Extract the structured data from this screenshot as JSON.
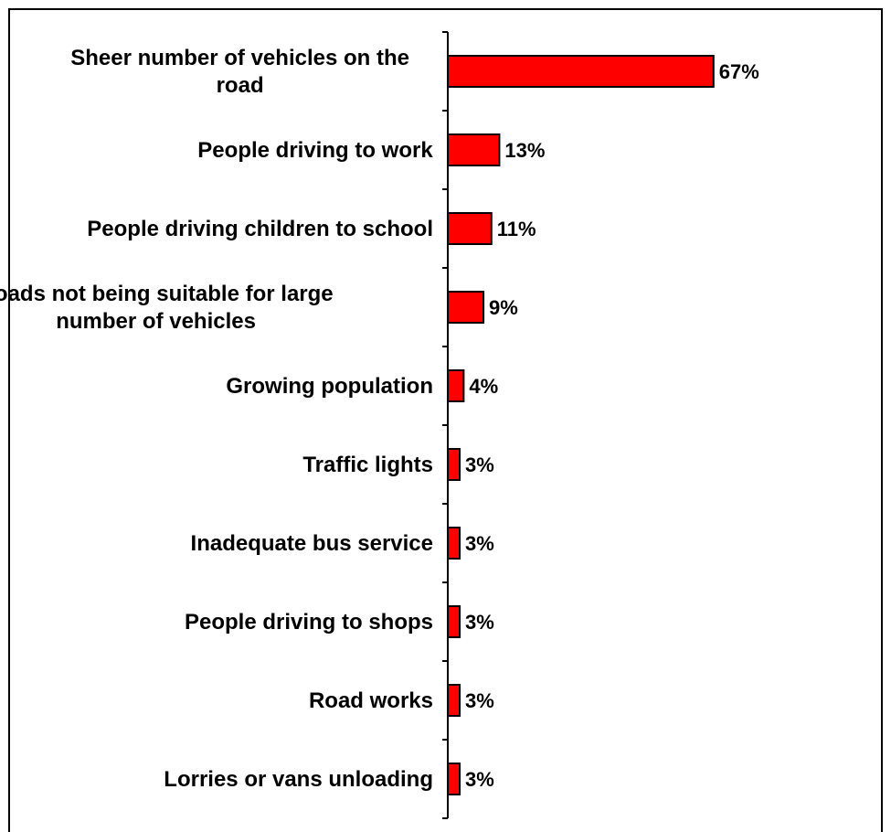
{
  "chart_data": {
    "type": "bar",
    "orientation": "horizontal",
    "title": "",
    "xlabel": "",
    "ylabel": "",
    "categories": [
      "Sheer number of vehicles on the road",
      "People driving to work",
      "People driving children to school",
      "Roads not being suitable for large number of vehicles",
      "Growing population",
      "Traffic lights",
      "Inadequate bus service",
      "People driving to shops",
      "Road works",
      "Lorries or vans unloading"
    ],
    "values": [
      67,
      13,
      11,
      9,
      4,
      3,
      3,
      3,
      3,
      3
    ],
    "value_labels": [
      "67%",
      "13%",
      "11%",
      "9%",
      "4%",
      "3%",
      "3%",
      "3%",
      "3%",
      "3%"
    ],
    "category_label_lines": [
      [
        "Sheer number of vehicles on the",
        "road"
      ],
      [
        "People driving to work"
      ],
      [
        "People driving children to school"
      ],
      [
        "Roads not being suitable for large",
        "number of vehicles"
      ],
      [
        "Growing population"
      ],
      [
        "Traffic lights"
      ],
      [
        "Inadequate bus service"
      ],
      [
        "People driving to shops"
      ],
      [
        "Road works"
      ],
      [
        "Lorries or vans unloading"
      ]
    ],
    "xlim": [
      0,
      70
    ],
    "unit": "%",
    "grid": false,
    "legend": "none",
    "colors": {
      "bar_fill": "#ff0000",
      "bar_stroke": "#000000",
      "frame": "#000000"
    }
  }
}
